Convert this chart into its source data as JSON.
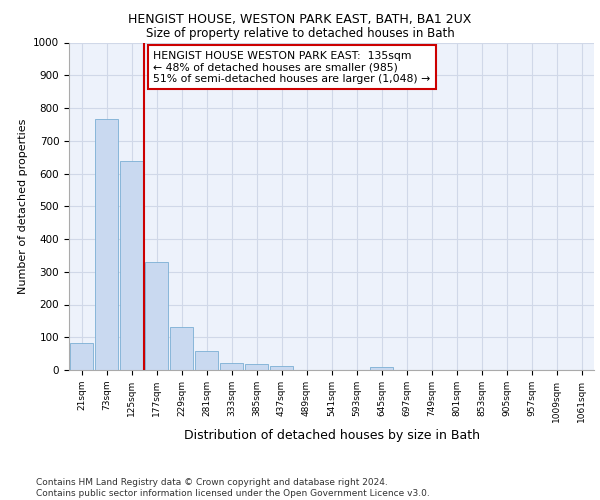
{
  "title_line1": "HENGIST HOUSE, WESTON PARK EAST, BATH, BA1 2UX",
  "title_line2": "Size of property relative to detached houses in Bath",
  "xlabel": "Distribution of detached houses by size in Bath",
  "ylabel": "Number of detached properties",
  "categories": [
    "21sqm",
    "73sqm",
    "125sqm",
    "177sqm",
    "229sqm",
    "281sqm",
    "333sqm",
    "385sqm",
    "437sqm",
    "489sqm",
    "541sqm",
    "593sqm",
    "645sqm",
    "697sqm",
    "749sqm",
    "801sqm",
    "853sqm",
    "905sqm",
    "957sqm",
    "1009sqm",
    "1061sqm"
  ],
  "values": [
    82,
    765,
    638,
    330,
    130,
    58,
    22,
    18,
    13,
    0,
    0,
    0,
    10,
    0,
    0,
    0,
    0,
    0,
    0,
    0,
    0
  ],
  "bar_color": "#c9d9f0",
  "bar_edge_color": "#7bafd4",
  "vline_color": "#cc0000",
  "vline_x": 2.5,
  "annotation_text": "HENGIST HOUSE WESTON PARK EAST:  135sqm\n← 48% of detached houses are smaller (985)\n51% of semi-detached houses are larger (1,048) →",
  "annotation_box_facecolor": "#ffffff",
  "annotation_box_edgecolor": "#cc0000",
  "ylim": [
    0,
    1000
  ],
  "yticks": [
    0,
    100,
    200,
    300,
    400,
    500,
    600,
    700,
    800,
    900,
    1000
  ],
  "footnote": "Contains HM Land Registry data © Crown copyright and database right 2024.\nContains public sector information licensed under the Open Government Licence v3.0.",
  "grid_color": "#d0d8e8",
  "bg_color": "#edf2fb"
}
